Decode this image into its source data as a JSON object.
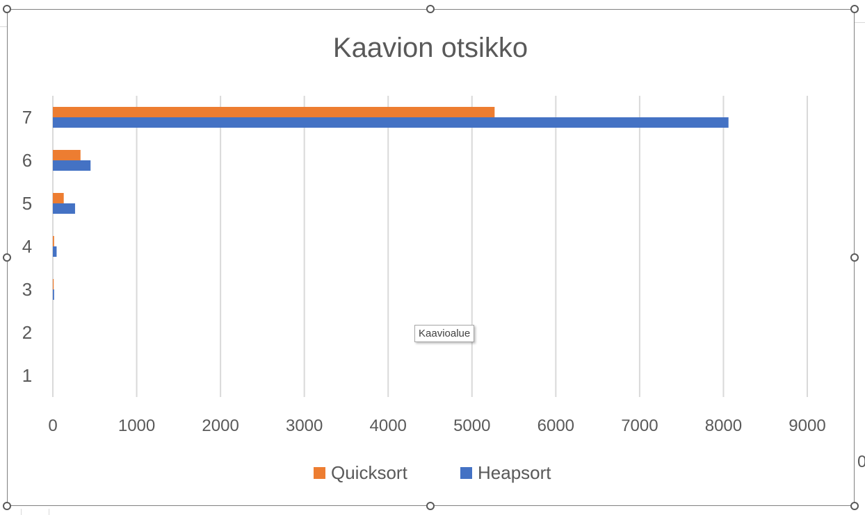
{
  "chart_data": {
    "type": "bar",
    "orientation": "horizontal",
    "title": "Kaavion otsikko",
    "categories": [
      "1",
      "2",
      "3",
      "4",
      "5",
      "6",
      "7"
    ],
    "series": [
      {
        "name": "Quicksort",
        "color": "#ed7d31",
        "values": [
          0,
          0,
          10,
          15,
          130,
          330,
          5270
        ]
      },
      {
        "name": "Heapsort",
        "color": "#4472c4",
        "values": [
          0,
          0,
          15,
          45,
          265,
          450,
          8060
        ]
      }
    ],
    "xlim": [
      0,
      9000
    ],
    "xticks": [
      "0",
      "1000",
      "2000",
      "3000",
      "4000",
      "5000",
      "6000",
      "7000",
      "8000",
      "9000"
    ],
    "grid": "vertical",
    "legend": "bottom",
    "xlabel": "",
    "ylabel": ""
  },
  "tooltip": {
    "text": "Kaavioalue"
  },
  "right_edge_text": "0"
}
